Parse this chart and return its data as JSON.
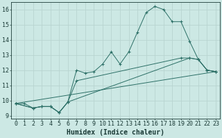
{
  "xlabel": "Humidex (Indice chaleur)",
  "xlim": [
    -0.5,
    23.5
  ],
  "ylim": [
    8.8,
    16.5
  ],
  "yticks": [
    9,
    10,
    11,
    12,
    13,
    14,
    15,
    16
  ],
  "xticks": [
    0,
    1,
    2,
    3,
    4,
    5,
    6,
    7,
    8,
    9,
    10,
    11,
    12,
    13,
    14,
    15,
    16,
    17,
    18,
    19,
    20,
    21,
    22,
    23
  ],
  "xtick_labels": [
    "0",
    "1",
    "2",
    "3",
    "4",
    "5",
    "6",
    "7",
    "8",
    "9",
    "10",
    "11",
    "12",
    "13",
    "14",
    "15",
    "16",
    "17",
    "18",
    "19",
    "20",
    "21",
    "22",
    "23"
  ],
  "line_color": "#2a6e65",
  "bg_color": "#cce8e4",
  "grid_color": "#b8d4d0",
  "series": [
    {
      "x": [
        0,
        1,
        2,
        3,
        4,
        5,
        6,
        7,
        8,
        9,
        10,
        11,
        12,
        13,
        14,
        15,
        16,
        17,
        18,
        19,
        20,
        21,
        22,
        23
      ],
      "y": [
        9.8,
        9.8,
        9.5,
        9.6,
        9.6,
        9.2,
        9.9,
        12.0,
        11.8,
        11.9,
        12.4,
        13.2,
        12.4,
        13.2,
        14.5,
        15.8,
        16.2,
        16.0,
        15.2,
        15.2,
        13.9,
        12.7,
        12.0,
        11.9
      ]
    },
    {
      "x": [
        0,
        23
      ],
      "y": [
        9.8,
        11.9
      ]
    },
    {
      "x": [
        0,
        2,
        3,
        4,
        5,
        6,
        20,
        21,
        22,
        23
      ],
      "y": [
        9.8,
        9.5,
        9.6,
        9.6,
        9.2,
        9.9,
        12.8,
        12.7,
        12.0,
        11.9
      ]
    },
    {
      "x": [
        0,
        2,
        3,
        4,
        5,
        6,
        7,
        19,
        20,
        21,
        22,
        23
      ],
      "y": [
        9.8,
        9.5,
        9.6,
        9.6,
        9.2,
        9.9,
        11.3,
        12.8,
        12.8,
        12.7,
        12.0,
        11.9
      ]
    }
  ],
  "font_color": "#1a3a36",
  "tick_fontsize": 6,
  "label_fontsize": 7,
  "marker": "+",
  "markersize": 3,
  "linewidth": 0.7
}
